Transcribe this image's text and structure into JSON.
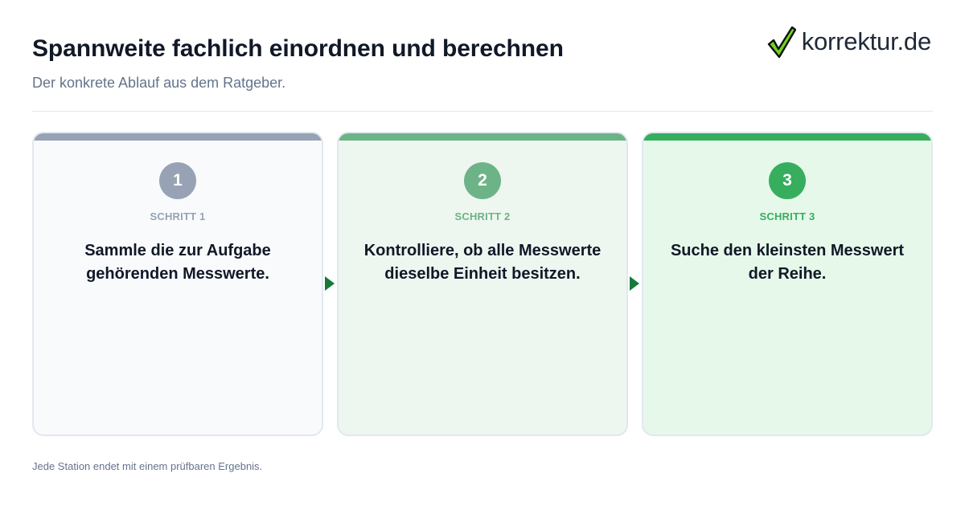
{
  "header": {
    "title": "Spannweite fachlich einordnen und berechnen",
    "subtitle": "Der konkrete Ablauf aus dem Ratgeber."
  },
  "logo": {
    "text": "korrektur.de",
    "icon": "checkmark-icon",
    "icon_color": "#6fd41e"
  },
  "steps": [
    {
      "number": "1",
      "label": "SCHRITT 1",
      "text": "Sammle die zur Aufgabe gehörenden Messwerte.",
      "color": "#97a3b4"
    },
    {
      "number": "2",
      "label": "SCHRITT 2",
      "text": "Kontrolliere, ob alle Messwerte dieselbe Einheit besitzen.",
      "color": "#6cb487"
    },
    {
      "number": "3",
      "label": "SCHRITT 3",
      "text": "Suche den kleinsten Messwert der Reihe.",
      "color": "#36ae5e"
    }
  ],
  "connector_color": "#167a3a",
  "footer": {
    "note": "Jede Station endet mit einem prüfbaren Ergebnis."
  }
}
